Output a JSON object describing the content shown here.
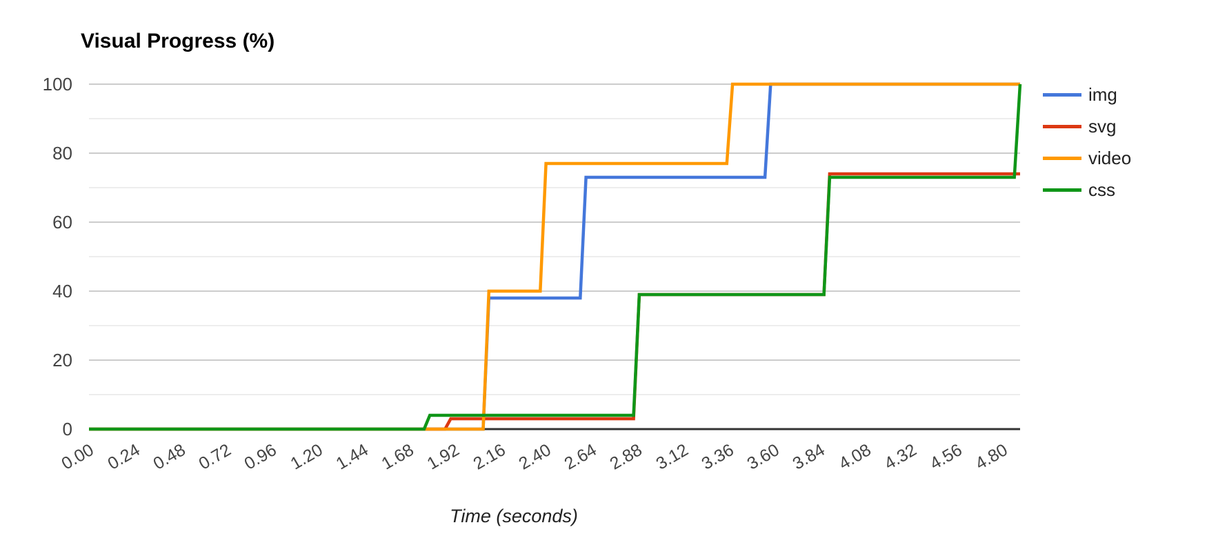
{
  "chart_data": {
    "type": "line",
    "line_style": "step",
    "title": "Visual Progress (%)",
    "xlabel": "Time (seconds)",
    "ylabel": "",
    "xlim": [
      0,
      4.89
    ],
    "ylim": [
      0,
      100
    ],
    "grid": true,
    "legend_position": "right",
    "x_ticks": [
      "0.00",
      "0.24",
      "0.48",
      "0.72",
      "0.96",
      "1.20",
      "1.44",
      "1.68",
      "1.92",
      "2.16",
      "2.40",
      "2.64",
      "2.88",
      "3.12",
      "3.36",
      "3.60",
      "3.84",
      "4.08",
      "4.32",
      "4.56",
      "4.80"
    ],
    "y_ticks": [
      0,
      20,
      40,
      60,
      80,
      100
    ],
    "y_minor_ticks": [
      10,
      30,
      50,
      70,
      90
    ],
    "series": [
      {
        "name": "img",
        "color": "#4477DB",
        "points": [
          [
            0,
            0
          ],
          [
            2.07,
            0
          ],
          [
            2.1,
            38
          ],
          [
            2.58,
            38
          ],
          [
            2.61,
            73
          ],
          [
            3.55,
            73
          ],
          [
            3.58,
            100
          ],
          [
            4.89,
            100
          ]
        ]
      },
      {
        "name": "svg",
        "color": "#DC3912",
        "points": [
          [
            0,
            0
          ],
          [
            1.87,
            0
          ],
          [
            1.9,
            3
          ],
          [
            2.86,
            3
          ],
          [
            2.89,
            39
          ],
          [
            3.86,
            39
          ],
          [
            3.89,
            74
          ],
          [
            4.89,
            74
          ]
        ]
      },
      {
        "name": "video",
        "color": "#FF9900",
        "points": [
          [
            0,
            0
          ],
          [
            2.07,
            0
          ],
          [
            2.1,
            40
          ],
          [
            2.37,
            40
          ],
          [
            2.4,
            77
          ],
          [
            3.35,
            77
          ],
          [
            3.38,
            100
          ],
          [
            4.89,
            100
          ]
        ]
      },
      {
        "name": "css",
        "color": "#109618",
        "points": [
          [
            0,
            0
          ],
          [
            1.76,
            0
          ],
          [
            1.79,
            4
          ],
          [
            2.86,
            4
          ],
          [
            2.89,
            39
          ],
          [
            3.86,
            39
          ],
          [
            3.89,
            73
          ],
          [
            4.86,
            73
          ],
          [
            4.89,
            100
          ]
        ]
      }
    ],
    "colors": {
      "background": "#ffffff",
      "axis_line": "#333333",
      "grid_major": "#cccccc",
      "grid_minor": "#ededed",
      "tick_text": "#444444",
      "title_text": "#000000",
      "legend_text": "#222222"
    }
  }
}
